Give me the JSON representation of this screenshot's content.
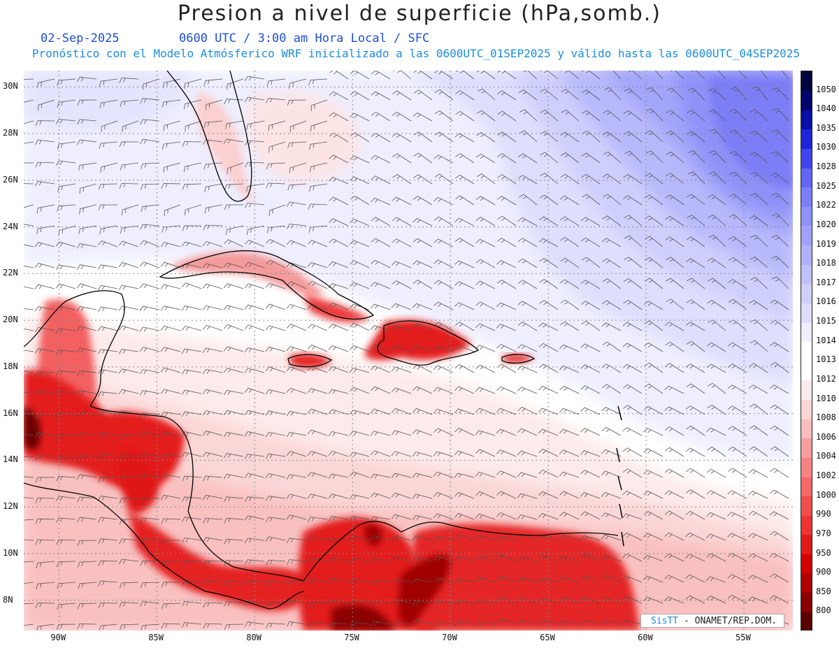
{
  "header": {
    "title": "Presion a nivel de superficie (hPa,somb.)",
    "date": "02-Sep-2025",
    "time_line": "0600 UTC / 3:00 am Hora Local / SFC",
    "forecast_line": "Pronóstico con el Modelo Atmósferico WRF inicializado a las 0600UTC_01SEP2025 y válido hasta las  0600UTC_04SEP2025"
  },
  "map": {
    "lon_range": [
      -91.8,
      -52.5
    ],
    "lat_range": [
      6.7,
      30.7
    ],
    "lat_labels": [
      "8N",
      "10N",
      "12N",
      "14N",
      "16N",
      "18N",
      "20N",
      "22N",
      "24N",
      "26N",
      "28N",
      "30N"
    ],
    "lon_labels": [
      "90W",
      "85W",
      "80W",
      "75W",
      "70W",
      "65W",
      "60W",
      "55W"
    ]
  },
  "legend": {
    "levels": [
      "800",
      "850",
      "900",
      "950",
      "970",
      "990",
      "1000",
      "1002",
      "1004",
      "1006",
      "1008",
      "1010",
      "1012",
      "1013",
      "1014",
      "1015",
      "1016",
      "1017",
      "1018",
      "1019",
      "1020",
      "1022",
      "1025",
      "1028",
      "1030",
      "1035",
      "1040",
      "1050"
    ],
    "colors": [
      "#5c0000",
      "#8b0000",
      "#b00000",
      "#d40000",
      "#e31a1a",
      "#ee3333",
      "#f24d4d",
      "#f46868",
      "#f78282",
      "#f99e9e",
      "#fbbcbc",
      "#fdd5d5",
      "#fdeaea",
      "#ffffff",
      "#ffffff",
      "#eeeeff",
      "#dedefe",
      "#cfcffd",
      "#bfc0fc",
      "#b0b1fb",
      "#a0a2fa",
      "#8f91f8",
      "#7b7ef6",
      "#6266f3",
      "#3f44ee",
      "#1f24d8",
      "#0a0ea8",
      "#03056e",
      "#020440"
    ]
  },
  "branding": {
    "logo_text": "SisTT",
    "org": "- ONAMET/REP.DOM."
  }
}
